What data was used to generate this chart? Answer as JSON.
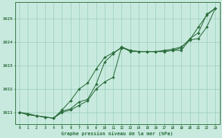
{
  "title": "Graphe pression niveau de la mer (hPa)",
  "background_color": "#c8eade",
  "grid_color": "#9ecfbe",
  "line_color": "#2d6e3e",
  "xlim_min": -0.5,
  "xlim_max": 23.5,
  "ylim_min": 1020.5,
  "ylim_max": 1025.7,
  "yticks": [
    1021,
    1022,
    1023,
    1024,
    1025
  ],
  "xticks": [
    0,
    1,
    2,
    3,
    4,
    5,
    6,
    7,
    8,
    9,
    10,
    11,
    12,
    13,
    14,
    15,
    16,
    17,
    18,
    19,
    20,
    21,
    22,
    23
  ],
  "series1_x": [
    0,
    1,
    2,
    3,
    4,
    5,
    6,
    7,
    8,
    9,
    10,
    11,
    12,
    13,
    14,
    15,
    16,
    17,
    18,
    19,
    20,
    21,
    22,
    23
  ],
  "series1_y": [
    1021.0,
    1020.9,
    1020.85,
    1020.8,
    1020.75,
    1021.05,
    1021.15,
    1021.45,
    1021.55,
    1022.2,
    1023.15,
    1023.5,
    1023.8,
    1023.65,
    1023.6,
    1023.6,
    1023.6,
    1023.6,
    1023.65,
    1023.65,
    1024.1,
    1024.65,
    1025.15,
    1025.45
  ],
  "series2_x": [
    0,
    1,
    2,
    3,
    4,
    5,
    6,
    7,
    8,
    9,
    10,
    11,
    12,
    13,
    14,
    15,
    16,
    17,
    18,
    19,
    20,
    21,
    22,
    23
  ],
  "series2_y": [
    1021.0,
    1020.95,
    1020.85,
    1020.8,
    1020.75,
    1021.1,
    1021.5,
    1022.0,
    1022.25,
    1022.85,
    1023.35,
    1023.55,
    1023.75,
    1023.65,
    1023.6,
    1023.6,
    1023.6,
    1023.6,
    1023.65,
    1023.75,
    1024.15,
    1024.4,
    1025.2,
    1025.45
  ],
  "series3_x": [
    0,
    1,
    2,
    3,
    4,
    5,
    6,
    7,
    8,
    9,
    10,
    11,
    12,
    13,
    14,
    15,
    16,
    17,
    18,
    19,
    20,
    21,
    22,
    23
  ],
  "series3_y": [
    1021.0,
    1020.9,
    1020.85,
    1020.8,
    1020.75,
    1021.0,
    1021.1,
    1021.3,
    1021.5,
    1022.0,
    1022.3,
    1022.5,
    1023.8,
    1023.6,
    1023.6,
    1023.6,
    1023.6,
    1023.65,
    1023.7,
    1023.8,
    1024.1,
    1024.15,
    1024.65,
    1025.45
  ]
}
